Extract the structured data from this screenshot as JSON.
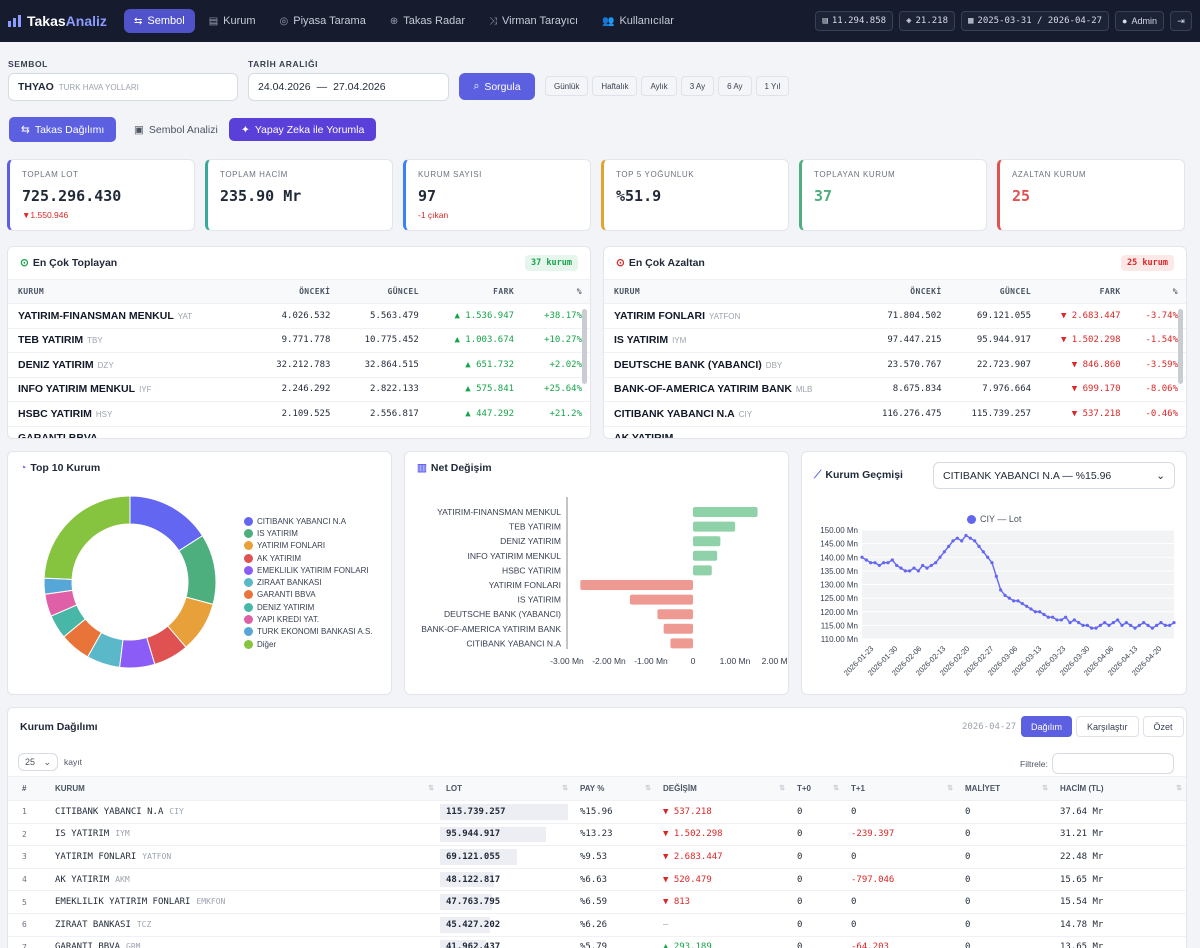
{
  "brand": {
    "prefix": "Takas",
    "suffix": "Analiz"
  },
  "nav": [
    {
      "icon": "⇆",
      "label": "Sembol",
      "active": true
    },
    {
      "icon": "▤",
      "label": "Kurum"
    },
    {
      "icon": "◎",
      "label": "Piyasa Tarama"
    },
    {
      "icon": "⊕",
      "label": "Takas Radar"
    },
    {
      "icon": "⤨",
      "label": "Virman Tarayıcı"
    },
    {
      "icon": "👥",
      "label": "Kullanıcılar"
    }
  ],
  "pills": {
    "count1": "11.294.858",
    "count2": "21.218",
    "dates": "2025-03-31 / 2026-04-27",
    "user": "Admin"
  },
  "form": {
    "sym_label": "SEMBOL",
    "sym": "THYAO",
    "sym_desc": "TURK HAVA YOLLARI",
    "date_label": "TARİH ARALIĞI",
    "date_from": "24.04.2026",
    "date_sep": "—",
    "date_to": "27.04.2026",
    "query": "Sorgula",
    "periods": [
      "Günlük",
      "Haftalık",
      "Aylık",
      "3 Ay",
      "6 Ay",
      "1 Yıl"
    ]
  },
  "tabs": {
    "t1": "Takas Dağılımı",
    "t2": "Sembol Analizi",
    "t3": "Yapay Zeka ile Yorumla"
  },
  "cards": [
    {
      "title": "TOPLAM LOT",
      "value": "725.296.430",
      "sub": "▼1.550.946",
      "color": "#5b5fe0",
      "sub_color": "#dc2626"
    },
    {
      "title": "TOPLAM HACİM",
      "value": "235.90 Mr",
      "sub": "",
      "color": "#3aa89a",
      "sub_color": "#dc2626"
    },
    {
      "title": "KURUM SAYISI",
      "value": "97",
      "sub": "-1 çıkan",
      "color": "#3b82f6",
      "sub_color": "#dc2626"
    },
    {
      "title": "TOP 5 YOĞUNLUK",
      "value": "%51.9",
      "sub": "",
      "color": "#e0a431",
      "sub_color": "#dc2626"
    },
    {
      "title": "TOPLAYAN KURUM",
      "value": "37",
      "sub": "",
      "color": "#4caf7d",
      "sub_color": "#16a34a",
      "value_color": "#4caf7d"
    },
    {
      "title": "AZALTAN KURUM",
      "value": "25",
      "sub": "",
      "color": "#e05252",
      "sub_color": "#dc2626",
      "value_color": "#e05252"
    }
  ],
  "gainers": {
    "title": "En Çok Toplayan",
    "badge": "37 kurum",
    "cols": [
      "KURUM",
      "ÖNCEKİ",
      "GÜNCEL",
      "FARK",
      "%"
    ],
    "rows": [
      {
        "name": "YATIRIM-FINANSMAN MENKUL",
        "code": "YAT",
        "prev": "4.026.532",
        "cur": "5.563.479",
        "diff": "▲ 1.536.947",
        "pct": "+38.17%"
      },
      {
        "name": "TEB YATIRIM",
        "code": "TBY",
        "prev": "9.771.778",
        "cur": "10.775.452",
        "diff": "▲ 1.003.674",
        "pct": "+10.27%"
      },
      {
        "name": "DENIZ YATIRIM",
        "code": "DZY",
        "prev": "32.212.783",
        "cur": "32.864.515",
        "diff": "▲ 651.732",
        "pct": "+2.02%"
      },
      {
        "name": "INFO YATIRIM MENKUL",
        "code": "IYF",
        "prev": "2.246.292",
        "cur": "2.822.133",
        "diff": "▲ 575.841",
        "pct": "+25.64%"
      },
      {
        "name": "HSBC YATIRIM",
        "code": "HSY",
        "prev": "2.109.525",
        "cur": "2.556.817",
        "diff": "▲ 447.292",
        "pct": "+21.2%"
      },
      {
        "name": "GARANTI BBVA",
        "code": "",
        "prev": "",
        "cur": "",
        "diff": "",
        "pct": ""
      }
    ]
  },
  "losers": {
    "title": "En Çok Azaltan",
    "badge": "25 kurum",
    "cols": [
      "KURUM",
      "ÖNCEKİ",
      "GÜNCEL",
      "FARK",
      "%"
    ],
    "rows": [
      {
        "name": "YATIRIM FONLARI",
        "code": "YATFON",
        "prev": "71.804.502",
        "cur": "69.121.055",
        "diff": "▼ 2.683.447",
        "pct": "-3.74%"
      },
      {
        "name": "IS YATIRIM",
        "code": "IYM",
        "prev": "97.447.215",
        "cur": "95.944.917",
        "diff": "▼ 1.502.298",
        "pct": "-1.54%"
      },
      {
        "name": "DEUTSCHE BANK (YABANCI)",
        "code": "DBY",
        "prev": "23.570.767",
        "cur": "22.723.907",
        "diff": "▼ 846.860",
        "pct": "-3.59%"
      },
      {
        "name": "BANK-OF-AMERICA YATIRIM BANK",
        "code": "MLB",
        "prev": "8.675.834",
        "cur": "7.976.664",
        "diff": "▼ 699.170",
        "pct": "-8.06%"
      },
      {
        "name": "CITIBANK YABANCI N.A",
        "code": "CIY",
        "prev": "116.276.475",
        "cur": "115.739.257",
        "diff": "▼ 537.218",
        "pct": "-0.46%"
      },
      {
        "name": "AK YATIRIM",
        "code": "",
        "prev": "",
        "cur": "",
        "diff": "",
        "pct": ""
      }
    ]
  },
  "top10": {
    "title": "Top 10 Kurum",
    "legend": [
      "CITIBANK YABANCI N.A",
      "IS YATIRIM",
      "YATIRIM FONLARI",
      "AK YATIRIM",
      "EMEKLILIK YATIRIM FONLARI",
      "ZIRAAT BANKASI",
      "GARANTI BBVA",
      "DENIZ YATIRIM",
      "YAPI KREDI YAT.",
      "TURK EKONOMI BANKASI A.S.",
      "Diğer"
    ],
    "colors": [
      "#6366f1",
      "#4caf7d",
      "#e8a13a",
      "#e05252",
      "#8b5cf6",
      "#5ab8c8",
      "#e9743a",
      "#48b7a7",
      "#e060a8",
      "#56a7d8",
      "#86c440"
    ]
  },
  "chart_data": [
    {
      "type": "pie",
      "title": "Top 10 Kurum",
      "categories": [
        "CITIBANK YABANCI N.A",
        "IS YATIRIM",
        "YATIRIM FONLARI",
        "AK YATIRIM",
        "EMEKLILIK YATIRIM FONLARI",
        "ZIRAAT BANKASI",
        "GARANTI BBVA",
        "DENIZ YATIRIM",
        "YAPI KREDI YAT.",
        "TURK EKONOMI BANKASI A.S.",
        "Diğer"
      ],
      "values": [
        15.96,
        13.23,
        9.53,
        6.63,
        6.59,
        6.26,
        5.79,
        4.53,
        4.2,
        3.0,
        24.28
      ]
    },
    {
      "type": "bar",
      "title": "Net Değişim",
      "categories": [
        "YATIRIM-FINANSMAN MENKUL",
        "TEB YATIRIM",
        "DENIZ YATIRIM",
        "INFO YATIRIM MENKUL",
        "HSBC YATIRIM",
        "YATIRIM FONLARI",
        "IS YATIRIM",
        "DEUTSCHE BANK (YABANCI)",
        "BANK-OF-AMERICA YATIRIM BANK",
        "CITIBANK YABANCI N.A"
      ],
      "values": [
        1536947,
        1003674,
        651732,
        575841,
        447292,
        -2683447,
        -1502298,
        -846860,
        -699170,
        -537218
      ],
      "xlim": [
        -3000000,
        2000000
      ],
      "xticks": [
        "-3.00 Mn",
        "-2.00 Mn",
        "-1.00 Mn",
        "0",
        "1.00 Mn",
        "2.00 Mn"
      ]
    },
    {
      "type": "line",
      "title": "Kurum Geçmişi",
      "series": [
        {
          "name": "CIY — Lot",
          "values": [
            140,
            139,
            138,
            138,
            137,
            138,
            138,
            139,
            137,
            136,
            135,
            135,
            136,
            135,
            137,
            136,
            137,
            138,
            140,
            142,
            144,
            146,
            147,
            146,
            148,
            147,
            146,
            144,
            142,
            140,
            138,
            133,
            128,
            126,
            125,
            124,
            124,
            123,
            122,
            121,
            120,
            120,
            119,
            118,
            118,
            117,
            117,
            118,
            116,
            117,
            116,
            115,
            115,
            114,
            114,
            115,
            116,
            115,
            116,
            117,
            115,
            116,
            115,
            114,
            115,
            116,
            115,
            114,
            115,
            116,
            115,
            115,
            116
          ]
        }
      ],
      "xticks": [
        "2026-01-23",
        "2026-01-30",
        "2026-02-06",
        "2026-02-13",
        "2026-02-20",
        "2026-02-27",
        "2026-03-06",
        "2026-03-13",
        "2026-03-23",
        "2026-03-30",
        "2026-04-06",
        "2026-04-13",
        "2026-04-20"
      ],
      "yticks": [
        "150.00 Mn",
        "145.00 Mn",
        "140.00 Mn",
        "135.00 Mn",
        "130.00 Mn",
        "125.00 Mn",
        "120.00 Mn",
        "115.00 Mn",
        "110.00 Mn"
      ],
      "ylim": [
        110,
        150
      ]
    }
  ],
  "net": {
    "title": "Net Değişim"
  },
  "hist": {
    "title": "Kurum Geçmişi",
    "select": "CITIBANK YABANCI N.A — %15.96",
    "legend": "CIY — Lot"
  },
  "dist": {
    "title": "Kurum Dağılımı",
    "date": "2026-04-27",
    "btns": [
      "Dağılım",
      "Karşılaştır",
      "Özet"
    ],
    "page_size": "25",
    "kayit": "kayıt",
    "filter_label": "Filtrele:",
    "cols": [
      "#",
      "KURUM",
      "LOT",
      "PAY %",
      "DEĞİŞİM",
      "T+0",
      "T+1",
      "MALİYET",
      "HACİM (TL)"
    ],
    "rows": [
      {
        "i": "1",
        "name": "CITIBANK YABANCI N.A",
        "code": "CIY",
        "lot": "115.739.257",
        "w": 1.0,
        "pay": "%15.96",
        "chg": "▼ 537.218",
        "cls": "neg",
        "t0": "0",
        "t1": "0",
        "t1c": "",
        "cost": "0",
        "vol": "37.64 Mr"
      },
      {
        "i": "2",
        "name": "IS YATIRIM",
        "code": "IYM",
        "lot": "95.944.917",
        "w": 0.83,
        "pay": "%13.23",
        "chg": "▼ 1.502.298",
        "cls": "neg",
        "t0": "0",
        "t1": "-239.397",
        "t1c": "neg",
        "cost": "0",
        "vol": "31.21 Mr"
      },
      {
        "i": "3",
        "name": "YATIRIM FONLARI",
        "code": "YATFON",
        "lot": "69.121.055",
        "w": 0.6,
        "pay": "%9.53",
        "chg": "▼ 2.683.447",
        "cls": "neg",
        "t0": "0",
        "t1": "0",
        "t1c": "",
        "cost": "0",
        "vol": "22.48 Mr"
      },
      {
        "i": "4",
        "name": "AK YATIRIM",
        "code": "AKM",
        "lot": "48.122.817",
        "w": 0.42,
        "pay": "%6.63",
        "chg": "▼ 520.479",
        "cls": "neg",
        "t0": "0",
        "t1": "-797.046",
        "t1c": "neg",
        "cost": "0",
        "vol": "15.65 Mr"
      },
      {
        "i": "5",
        "name": "EMEKLILIK YATIRIM FONLARI",
        "code": "EMKFON",
        "lot": "47.763.795",
        "w": 0.41,
        "pay": "%6.59",
        "chg": "▼ 813",
        "cls": "neg",
        "t0": "0",
        "t1": "0",
        "t1c": "",
        "cost": "0",
        "vol": "15.54 Mr"
      },
      {
        "i": "6",
        "name": "ZIRAAT BANKASI",
        "code": "TCZ",
        "lot": "45.427.202",
        "w": 0.39,
        "pay": "%6.26",
        "chg": "—",
        "cls": "mut",
        "t0": "0",
        "t1": "0",
        "t1c": "",
        "cost": "0",
        "vol": "14.78 Mr"
      },
      {
        "i": "7",
        "name": "GARANTI BBVA",
        "code": "GRM",
        "lot": "41.962.437",
        "w": 0.36,
        "pay": "%5.79",
        "chg": "▲ 293.189",
        "cls": "pos",
        "t0": "0",
        "t1": "-64.203",
        "t1c": "neg",
        "cost": "0",
        "vol": "13.65 Mr"
      }
    ]
  }
}
